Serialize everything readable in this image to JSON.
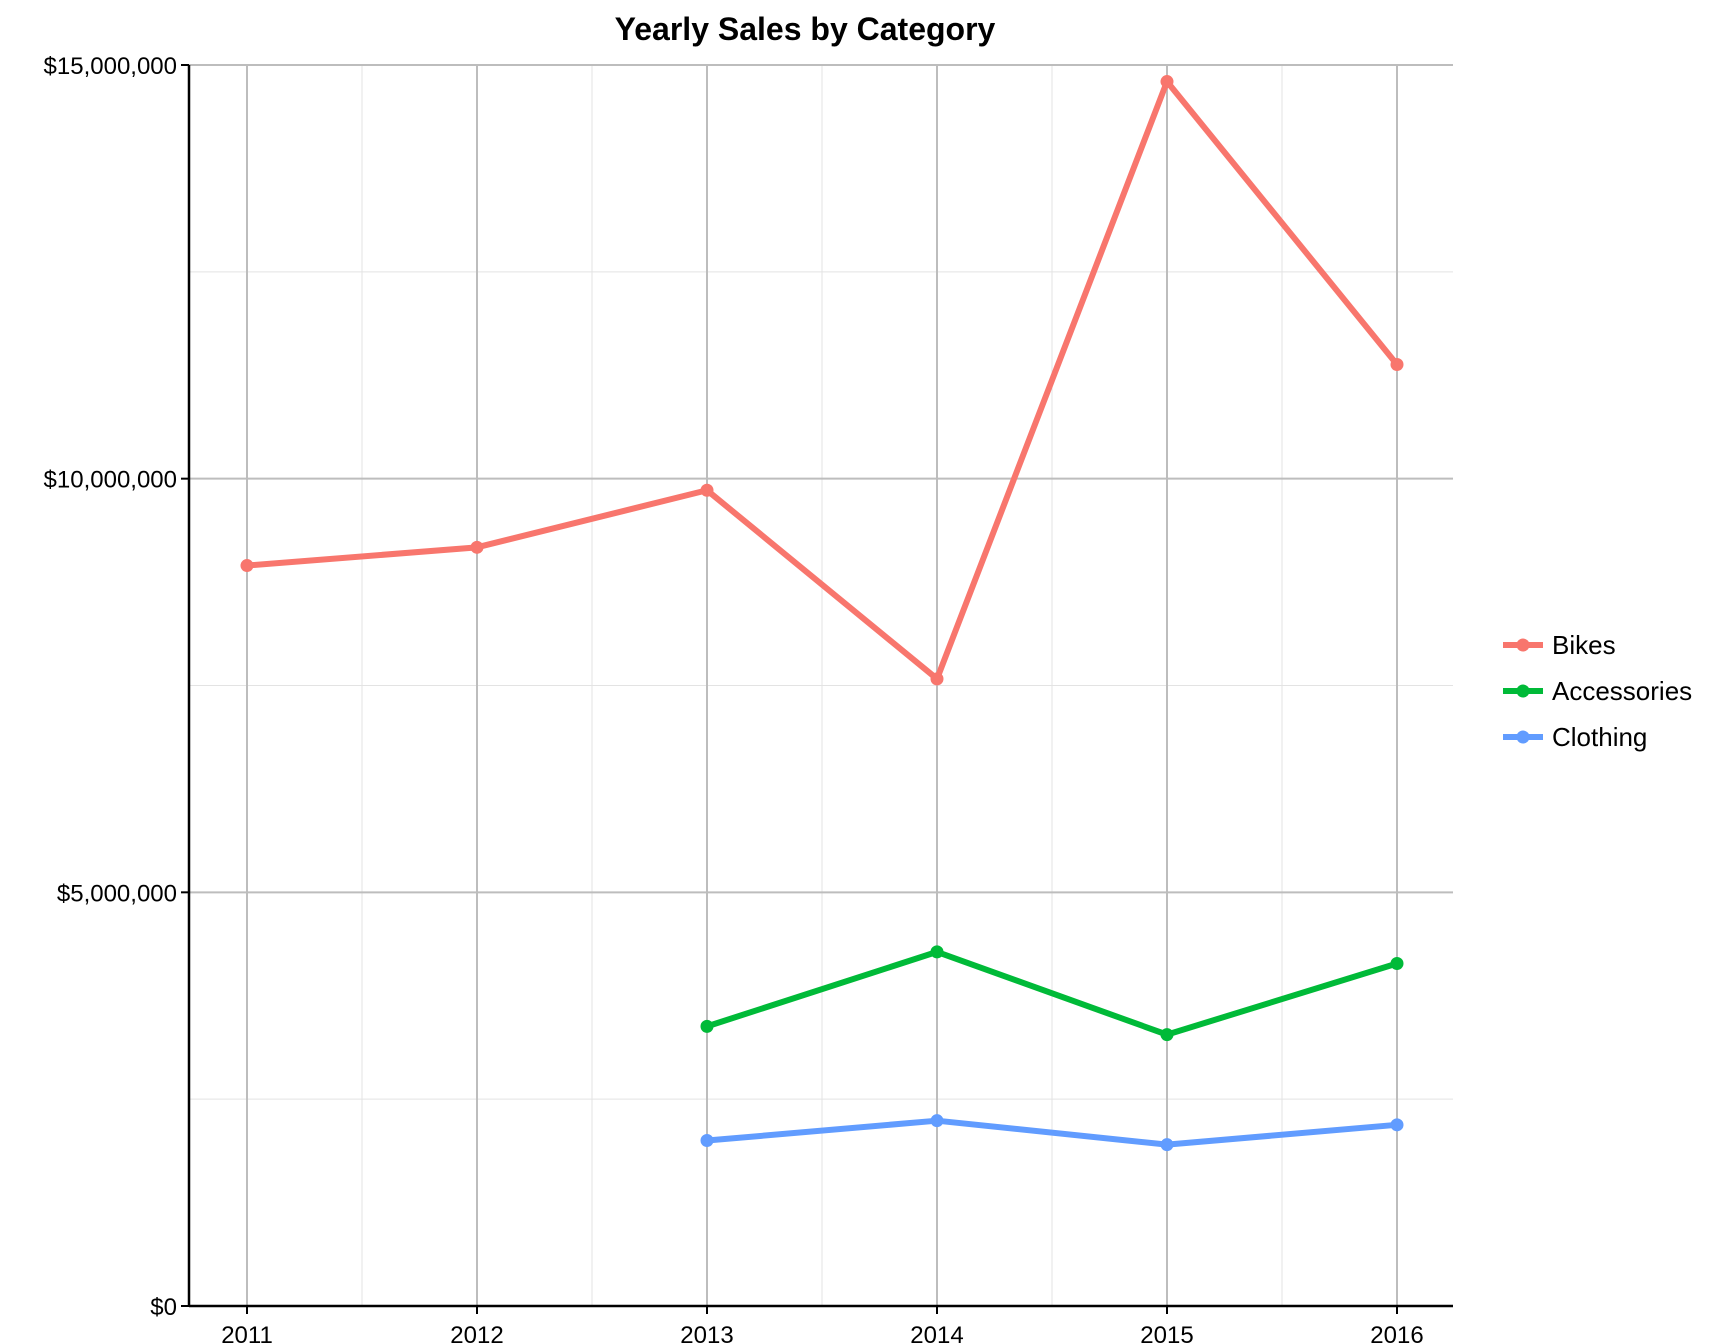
{
  "chart_data": {
    "type": "line",
    "title": "Yearly Sales by Category",
    "xlabel": "",
    "ylabel": "",
    "categories": [
      "2011",
      "2012",
      "2013",
      "2014",
      "2015",
      "2016"
    ],
    "y_ticks": [
      "$0",
      "$5,000,000",
      "$10,000,000",
      "$15,000,000"
    ],
    "ylim": [
      0,
      15000000
    ],
    "grid": true,
    "legend_position": "right",
    "series": [
      {
        "name": "Bikes",
        "color": "#f8766d",
        "values": [
          8950000,
          9170000,
          9860000,
          7580000,
          14800000,
          11380000
        ]
      },
      {
        "name": "Accessories",
        "color": "#00ba38",
        "values": [
          null,
          null,
          3380000,
          4280000,
          3280000,
          4140000
        ]
      },
      {
        "name": "Clothing",
        "color": "#619cff",
        "values": [
          null,
          null,
          2000000,
          2240000,
          1950000,
          2190000
        ]
      }
    ]
  }
}
